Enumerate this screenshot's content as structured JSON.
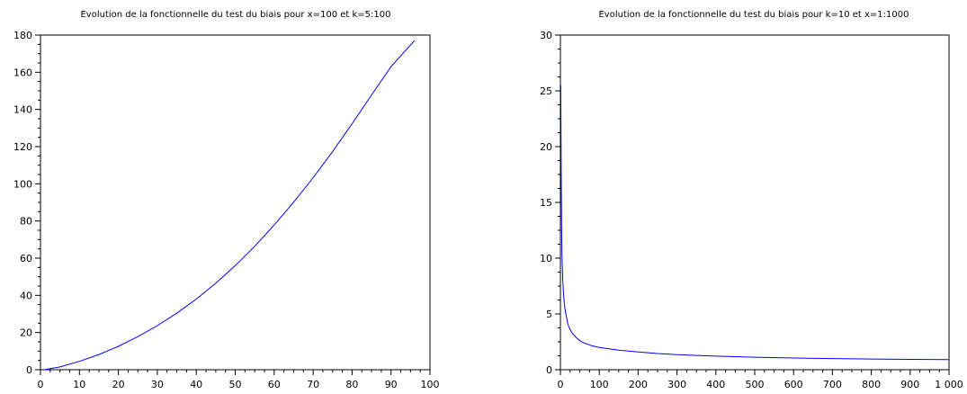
{
  "chart_data": [
    {
      "type": "line",
      "title": "Evolution de la fonctionnelle du test du biais pour x=100 et k=5:100",
      "xlim": [
        0,
        100
      ],
      "ylim": [
        0,
        180
      ],
      "xticks": [
        0,
        10,
        20,
        30,
        40,
        50,
        60,
        70,
        80,
        90,
        100
      ],
      "xtick_labels": [
        "0",
        "10",
        "20",
        "30",
        "40",
        "50",
        "60",
        "70",
        "80",
        "90",
        "100"
      ],
      "yticks": [
        0,
        20,
        40,
        60,
        80,
        100,
        120,
        140,
        160,
        180
      ],
      "ytick_labels": [
        "0",
        "20",
        "40",
        "60",
        "80",
        "100",
        "120",
        "140",
        "160",
        "180"
      ],
      "grid": false,
      "series": [
        {
          "color": "#0000ff",
          "x": [
            1,
            5,
            10,
            15,
            20,
            25,
            30,
            35,
            40,
            45,
            50,
            55,
            60,
            65,
            70,
            75,
            80,
            85,
            90,
            96
          ],
          "y": [
            0,
            1.5,
            4.5,
            8.2,
            12.6,
            17.8,
            23.7,
            30.4,
            38.0,
            46.5,
            56.0,
            66.4,
            77.8,
            90.1,
            103.3,
            117.4,
            132.3,
            147.8,
            163.0,
            177
          ]
        }
      ]
    },
    {
      "type": "line",
      "title": "Evolution de la fonctionnelle du test du biais pour k=10 et x=1:1000",
      "xlim": [
        0,
        1000
      ],
      "ylim": [
        0,
        30
      ],
      "xticks": [
        0,
        100,
        200,
        300,
        400,
        500,
        600,
        700,
        800,
        900,
        1000
      ],
      "xtick_labels": [
        "0",
        "100",
        "200",
        "300",
        "400",
        "500",
        "600",
        "700",
        "800",
        "900",
        "1 000"
      ],
      "yticks": [
        0,
        5,
        10,
        15,
        20,
        25,
        30
      ],
      "ytick_labels": [
        "0",
        "5",
        "10",
        "15",
        "20",
        "25",
        "30"
      ],
      "grid": false,
      "series": [
        {
          "color": "#0000ff",
          "x": [
            1,
            2,
            3,
            4,
            5,
            6,
            8,
            10,
            12,
            15,
            20,
            25,
            30,
            40,
            50,
            60,
            80,
            100,
            150,
            200,
            250,
            300,
            350,
            400,
            450,
            500,
            600,
            700,
            800,
            900,
            1000
          ],
          "y": [
            25.5,
            17.5,
            13.0,
            10.5,
            9.0,
            8.0,
            6.8,
            6.0,
            5.4,
            4.8,
            4.0,
            3.6,
            3.3,
            2.9,
            2.6,
            2.4,
            2.15,
            2.0,
            1.75,
            1.6,
            1.45,
            1.35,
            1.28,
            1.22,
            1.17,
            1.12,
            1.05,
            1.0,
            0.96,
            0.93,
            0.9
          ]
        }
      ]
    }
  ]
}
